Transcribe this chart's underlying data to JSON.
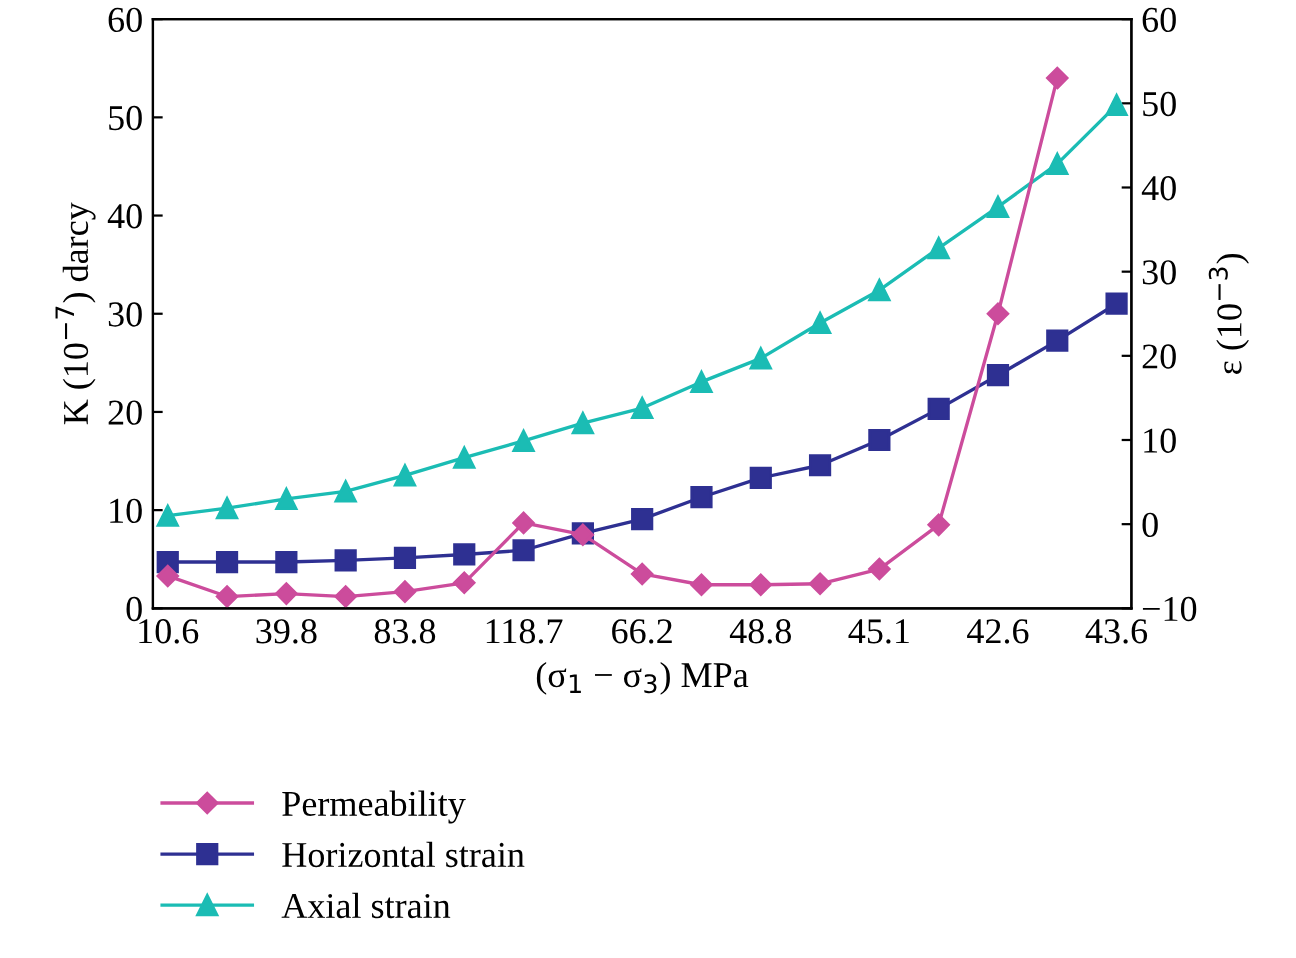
{
  "chart_data": {
    "type": "line",
    "xlabel": "(σ$_{1}$ − σ$_{3}$) MPa",
    "ylabel": "K (10$^{−7}$) darcy",
    "y2label": "ε (10$^{−3}$)",
    "categories": [
      "10.6",
      null,
      "39.8",
      null,
      "83.8",
      null,
      "118.7",
      null,
      "66.2",
      null,
      "48.8",
      null,
      "45.1",
      null,
      "42.6",
      null,
      "43.6"
    ],
    "series": [
      {
        "name": "Permeability",
        "color": "#cc4c9c",
        "marker": "diamond",
        "values": [
          3.3,
          1.2,
          1.5,
          1.2,
          1.7,
          2.6,
          8.7,
          7.5,
          3.5,
          2.4,
          2.4,
          2.5,
          4.0,
          8.5,
          30.0,
          54.0,
          null
        ]
      },
      {
        "name": "Horizontal strain",
        "color": "#2e3092",
        "marker": "square",
        "axis": "y2",
        "values": [
          -4.5,
          -4.5,
          -4.5,
          -4.3,
          -4.0,
          -3.6,
          -3.1,
          -1.1,
          0.6,
          3.2,
          5.5,
          7.0,
          10.0,
          13.7,
          17.7,
          21.8,
          26.2
        ]
      },
      {
        "name": "Axial strain",
        "color": "#1bbcb4",
        "marker": "triangle",
        "axis": "y2",
        "values": [
          1.0,
          1.9,
          3.0,
          3.9,
          5.8,
          7.9,
          9.9,
          12.0,
          13.8,
          16.9,
          19.7,
          23.9,
          27.8,
          32.8,
          37.7,
          42.8,
          49.8
        ]
      }
    ],
    "ylim": [
      0,
      60
    ],
    "yticks": [
      0,
      10,
      20,
      30,
      40,
      50,
      60
    ],
    "y2lim": [
      -10,
      60
    ],
    "y2ticks": [
      -10,
      0,
      10,
      20,
      30,
      40,
      50,
      60
    ],
    "grid": false,
    "legend": "bottom left"
  }
}
